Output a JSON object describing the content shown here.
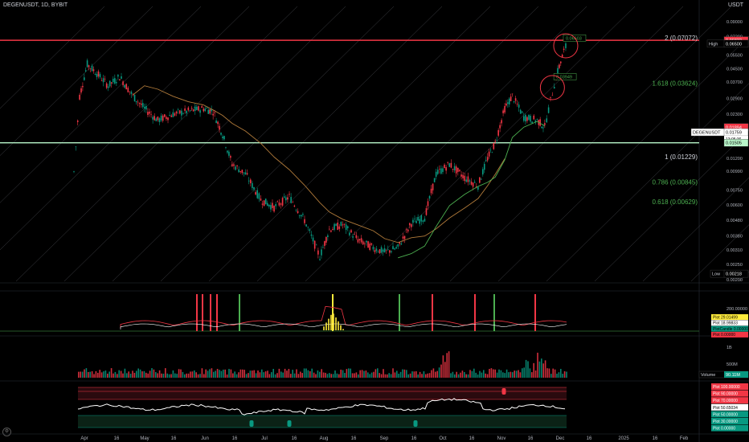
{
  "header": {
    "symbol": "DEGENUSDT, 1D, BYBIT",
    "currency": "USDT"
  },
  "colors": {
    "up": "#089981",
    "down": "#f23645",
    "resistance": "#f23645",
    "support": "#b9f6ca",
    "fib_red": "#f57f8a",
    "fib_green": "#4caf50",
    "fib_white": "#d1d4dc",
    "channel": "#787b86",
    "ma_orange": "#b07a3a",
    "ma_green": "#4caf50",
    "rsi_line": "#ffffff",
    "vol_up": "#089981",
    "vol_down": "#f23645",
    "osc_yellow": "#ffeb3b"
  },
  "chart_data": [
    {
      "type": "candlestick",
      "panel": "price",
      "y_scale": "log",
      "ylim": [
        0.00195,
        0.1
      ],
      "y_ticks": [
        "0.09000",
        "0.07200",
        "0.05500",
        "0.04500",
        "0.03700",
        "0.02900",
        "0.02300",
        "0.01200",
        "0.00990",
        "0.00750",
        "0.00600",
        "0.00480",
        "0.00380",
        "0.00310",
        "0.00250",
        "0.00200"
      ],
      "x_ticks": [
        "Apr",
        "16",
        "May",
        "16",
        "Jun",
        "16",
        "Jul",
        "16",
        "Aug",
        "16",
        "Sep",
        "16",
        "Oct",
        "16",
        "Nov",
        "16",
        "Dec",
        "16",
        "2025",
        "16",
        "Feb"
      ],
      "x_range": [
        "2024-03-29",
        "2025-02-20"
      ],
      "closes": [
        {
          "d": "2024-03-29",
          "c": 0.0098
        },
        {
          "d": "2024-04-01",
          "c": 0.03
        },
        {
          "d": "2024-04-05",
          "c": 0.048
        },
        {
          "d": "2024-04-10",
          "c": 0.042
        },
        {
          "d": "2024-04-16",
          "c": 0.035
        },
        {
          "d": "2024-04-22",
          "c": 0.04
        },
        {
          "d": "2024-04-29",
          "c": 0.03
        },
        {
          "d": "2024-05-05",
          "c": 0.025
        },
        {
          "d": "2024-05-12",
          "c": 0.021
        },
        {
          "d": "2024-05-20",
          "c": 0.023
        },
        {
          "d": "2024-05-28",
          "c": 0.024
        },
        {
          "d": "2024-06-05",
          "c": 0.025
        },
        {
          "d": "2024-06-10",
          "c": 0.024
        },
        {
          "d": "2024-06-15",
          "c": 0.017
        },
        {
          "d": "2024-06-20",
          "c": 0.011
        },
        {
          "d": "2024-06-27",
          "c": 0.0095
        },
        {
          "d": "2024-07-05",
          "c": 0.0065
        },
        {
          "d": "2024-07-12",
          "c": 0.0058
        },
        {
          "d": "2024-07-20",
          "c": 0.0068
        },
        {
          "d": "2024-07-28",
          "c": 0.0048
        },
        {
          "d": "2024-08-05",
          "c": 0.0028
        },
        {
          "d": "2024-08-10",
          "c": 0.0042
        },
        {
          "d": "2024-08-17",
          "c": 0.0045
        },
        {
          "d": "2024-08-25",
          "c": 0.0036
        },
        {
          "d": "2024-09-02",
          "c": 0.0032
        },
        {
          "d": "2024-09-08",
          "c": 0.003
        },
        {
          "d": "2024-09-15",
          "c": 0.0032
        },
        {
          "d": "2024-09-22",
          "c": 0.0046
        },
        {
          "d": "2024-09-29",
          "c": 0.005
        },
        {
          "d": "2024-10-05",
          "c": 0.0095
        },
        {
          "d": "2024-10-12",
          "c": 0.011
        },
        {
          "d": "2024-10-20",
          "c": 0.009
        },
        {
          "d": "2024-10-27",
          "c": 0.008
        },
        {
          "d": "2024-11-01",
          "c": 0.012
        },
        {
          "d": "2024-11-05",
          "c": 0.015
        },
        {
          "d": "2024-11-10",
          "c": 0.025
        },
        {
          "d": "2024-11-14",
          "c": 0.03
        },
        {
          "d": "2024-11-20",
          "c": 0.022
        },
        {
          "d": "2024-11-27",
          "c": 0.021
        },
        {
          "d": "2024-12-01",
          "c": 0.019
        },
        {
          "d": "2024-12-04",
          "c": 0.028
        },
        {
          "d": "2024-12-07",
          "c": 0.04
        },
        {
          "d": "2024-12-11",
          "c": 0.058
        },
        {
          "d": "2024-12-13",
          "c": 0.066
        }
      ],
      "horizontal_lines": [
        {
          "name": "resistance",
          "value": 0.06832,
          "label": "0.06832"
        },
        {
          "name": "support",
          "value": 0.01505,
          "label": "0.01505"
        }
      ],
      "fib_levels": [
        {
          "label": "2 (0.07072)",
          "value": 0.07072,
          "color": "fib_white"
        },
        {
          "label": "1.618 (0.03624)",
          "value": 0.03624,
          "color": "fib_green"
        },
        {
          "label": "1 (0.01229)",
          "value": 0.01229,
          "color": "fib_white"
        },
        {
          "label": "0.786 (0.00845)",
          "value": 0.00845,
          "color": "fib_green"
        },
        {
          "label": "0.618 (0.00629)",
          "value": 0.00629,
          "color": "fib_green"
        }
      ],
      "price_tags": [
        {
          "label": "",
          "value": "0.06832",
          "y": 0.06832,
          "bg": "#f23645"
        },
        {
          "label": "High",
          "value": "0.06500",
          "y": 0.065,
          "bg": "#000"
        },
        {
          "label": "",
          "value": "0.01894",
          "y": 0.01894,
          "bg": "#f23645"
        },
        {
          "label": "DEGENUSDT",
          "value": "0.01759",
          "sub": "13:05:36",
          "y": 0.01759,
          "bg": "#fff"
        },
        {
          "label": "",
          "value": "0.01505",
          "y": 0.01505,
          "bg": "#b9f6ca"
        },
        {
          "label": "Low",
          "value": "0.00218",
          "y": 0.00218,
          "bg": "#000"
        }
      ],
      "annotations": [
        {
          "text": "0.06603",
          "x": "2024-12-12",
          "y": 0.069
        },
        {
          "text": "0.03949",
          "x": "2024-12-07",
          "y": 0.039
        }
      ],
      "highlight_circles": [
        {
          "x": "2024-12-12",
          "y": 0.063
        },
        {
          "x": "2024-12-05",
          "y": 0.034
        }
      ]
    },
    {
      "type": "line",
      "panel": "oscillator",
      "y_ticks": [
        "200.00000",
        "100.00000"
      ],
      "legend": [
        {
          "label": "Plot",
          "value": "29.01499",
          "color": "#ffeb3b"
        },
        {
          "label": "Plot",
          "value": "18.99833",
          "color": "#fff"
        },
        {
          "label": "PlotCandle",
          "value": "0.00000",
          "color": "#089981"
        },
        {
          "label": "Plot",
          "value": "0.00000",
          "color": "#f23645"
        }
      ]
    },
    {
      "type": "bar",
      "panel": "volume",
      "y_ticks": [
        "1B",
        "500M"
      ],
      "legend": [
        {
          "label": "Volume",
          "value": "90.11M",
          "color": "#089981"
        }
      ],
      "series_description_none": ""
    },
    {
      "type": "line",
      "panel": "rsi",
      "levels": [
        100,
        90,
        70,
        50,
        30,
        0
      ],
      "current": 50.65034,
      "legend": [
        {
          "label": "Plot",
          "value": "100.00000",
          "color": "#f23645"
        },
        {
          "label": "Plot",
          "value": "90.00000",
          "color": "#f23645"
        },
        {
          "label": "Plot",
          "value": "70.00000",
          "color": "#f23645"
        },
        {
          "label": "Plot",
          "value": "50.65034",
          "color": "#fff"
        },
        {
          "label": "Plot",
          "value": "50.00000",
          "color": "#089981"
        },
        {
          "label": "Plot",
          "value": "30.00000",
          "color": "#089981"
        },
        {
          "label": "Plot",
          "value": "0.00000",
          "color": "#089981"
        }
      ]
    }
  ]
}
